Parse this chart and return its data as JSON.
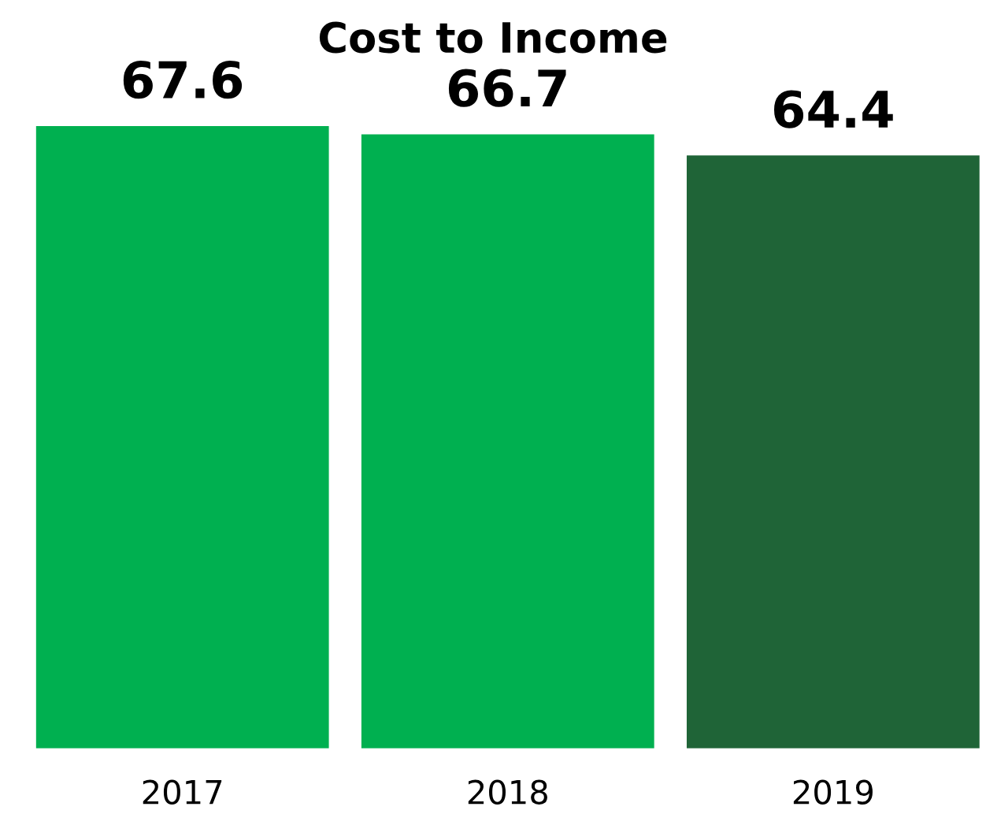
{
  "chart_data": {
    "type": "bar",
    "title": "Cost to Income",
    "categories": [
      "2017",
      "2018",
      "2019"
    ],
    "values": [
      67.6,
      66.7,
      64.4
    ],
    "colors": [
      "#00b050",
      "#00b050",
      "#1f6437"
    ],
    "data_labels": true,
    "grid": false,
    "legend": false
  }
}
